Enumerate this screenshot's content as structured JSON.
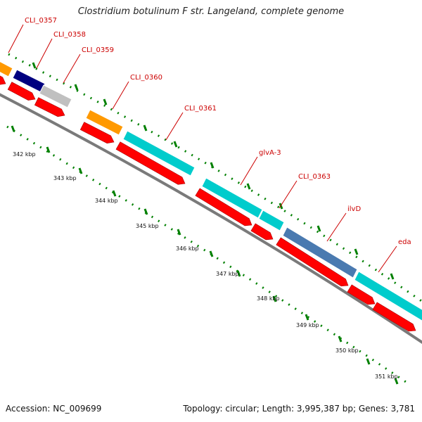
{
  "header": {
    "title": "Clostridium botulinum F str. Langeland, complete genome"
  },
  "footer": {
    "accession": "Accession: NC_009699",
    "topology": "Topology: circular; Length: 3,995,387 bp; Genes: 3,781"
  },
  "genes": [
    {
      "label": "CLI_0357",
      "color": "#ff9900"
    },
    {
      "label": "CLI_0358",
      "color": "#000080"
    },
    {
      "label": "CLI_0359",
      "color": "#c0c0c0"
    },
    {
      "label": "CLI_0360",
      "color": "#ff9900"
    },
    {
      "label": "CLI_0361",
      "color": "#00cccc"
    },
    {
      "label": "glvA-3",
      "color": "#00cccc"
    },
    {
      "label": "CLI_0363",
      "color": "#00cccc"
    },
    {
      "label": "ilvD",
      "color": "#4a7ab0"
    },
    {
      "label": "eda",
      "color": "#00cccc"
    }
  ],
  "scale_labels": [
    "342 kbp",
    "343 kbp",
    "344 kbp",
    "345 kbp",
    "346 kbp",
    "347 kbp",
    "348 kbp",
    "349 kbp",
    "350 kbp",
    "351 kbp"
  ],
  "colors": {
    "cds": "#ff0000",
    "backbone": "#888888",
    "ticks": "#008000",
    "label": "#cc0000"
  }
}
